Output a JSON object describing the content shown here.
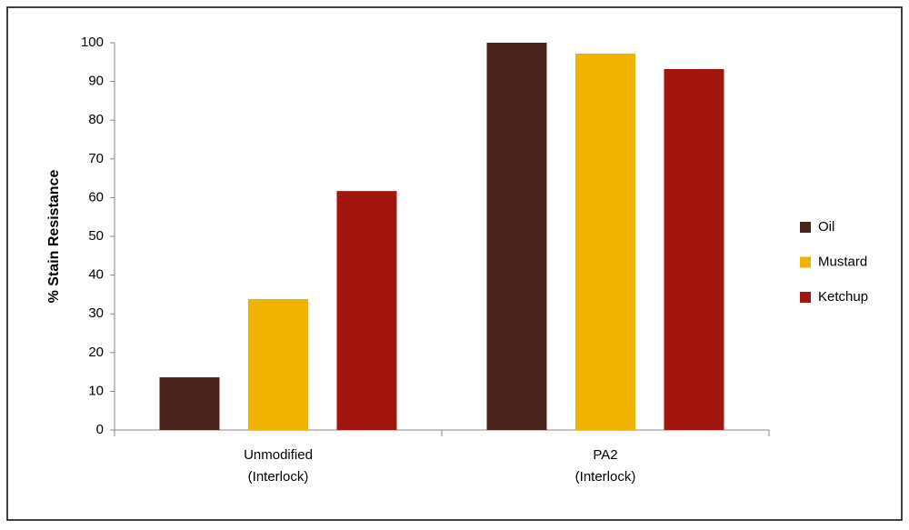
{
  "chart_data": {
    "type": "bar",
    "ylabel": "% Stain Resistance",
    "categories": [
      "Unmodified\n(Interlock)",
      "PA2\n(Interlock)"
    ],
    "series": [
      {
        "name": "Oil",
        "color": "#4a231c",
        "values": [
          13.6,
          100
        ]
      },
      {
        "name": "Mustard",
        "color": "#f0b400",
        "values": [
          33.8,
          97.2
        ]
      },
      {
        "name": "Ketchup",
        "color": "#a3150f",
        "values": [
          61.7,
          93.2
        ]
      }
    ],
    "ylim": [
      0,
      100
    ],
    "yticks": [
      0,
      10,
      20,
      30,
      40,
      50,
      60,
      70,
      80,
      90,
      100
    ],
    "grid": false,
    "legend": "right"
  }
}
